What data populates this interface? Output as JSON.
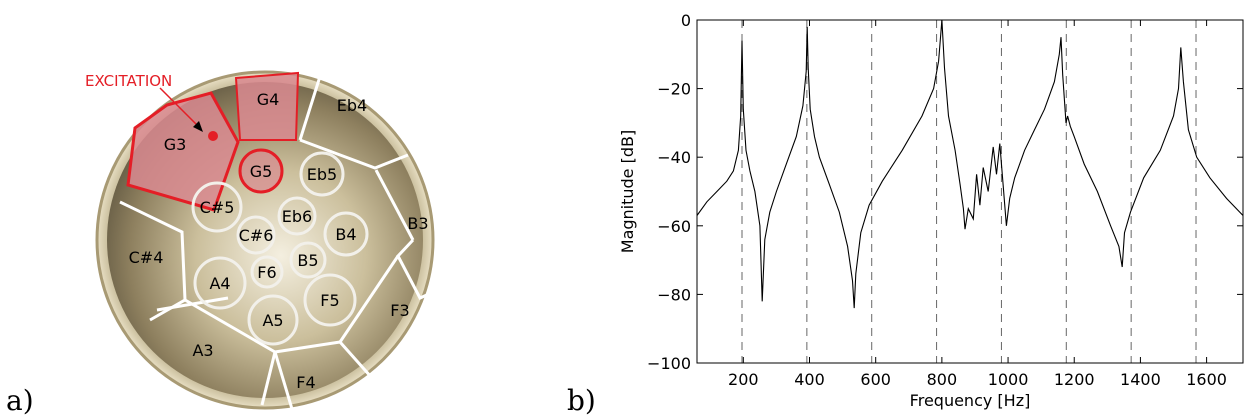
{
  "panel_labels": {
    "a": "a)",
    "b": "b)"
  },
  "pan_diagram": {
    "excitation_label": "EXCITATION",
    "highlight_color": "#d98a90",
    "excitation_color": "#e41e26",
    "notes": [
      "G3",
      "G4",
      "Eb4",
      "B3",
      "F3",
      "F4",
      "A3",
      "C#4",
      "G5",
      "Eb5",
      "C#5",
      "Eb6",
      "C#6",
      "B4",
      "B5",
      "F6",
      "A4",
      "F5",
      "A5"
    ]
  },
  "chart_data": {
    "type": "line",
    "title": "",
    "xlabel": "Frequency [Hz]",
    "ylabel": "Magnitude [dB]",
    "xlim": [
      60,
      1710
    ],
    "ylim": [
      -100,
      0
    ],
    "xticks": [
      200,
      400,
      600,
      800,
      1000,
      1200,
      1400,
      1600
    ],
    "yticks": [
      0,
      -20,
      -40,
      -60,
      -80,
      -100
    ],
    "vertical_dashed_lines": [
      196,
      392,
      588,
      784,
      980,
      1176,
      1372,
      1568
    ],
    "grid": false,
    "series": [
      {
        "x": [
          60,
          90,
          120,
          150,
          170,
          185,
          192,
          196,
          200,
          208,
          220,
          235,
          250,
          257,
          265,
          280,
          300,
          330,
          360,
          380,
          390,
          393,
          396,
          402,
          415,
          430,
          460,
          490,
          515,
          530,
          535,
          540,
          555,
          580,
          620,
          680,
          740,
          775,
          790,
          800,
          808,
          820,
          840,
          855,
          865,
          870,
          880,
          895,
          905,
          915,
          925,
          940,
          955,
          965,
          975,
          985,
          995,
          1005,
          1020,
          1050,
          1080,
          1110,
          1140,
          1155,
          1160,
          1165,
          1175,
          1180,
          1188,
          1200,
          1230,
          1270,
          1310,
          1335,
          1345,
          1352,
          1370,
          1410,
          1460,
          1500,
          1515,
          1522,
          1530,
          1545,
          1570,
          1610,
          1660,
          1710
        ],
        "y": [
          -57,
          -53,
          -50,
          -47,
          -44,
          -38,
          -28,
          -6,
          -26,
          -38,
          -44,
          -50,
          -60,
          -82,
          -64,
          -56,
          -50,
          -42,
          -34,
          -25,
          -15,
          -2,
          -14,
          -26,
          -34,
          -40,
          -48,
          -56,
          -66,
          -76,
          -84,
          -74,
          -62,
          -54,
          -47,
          -38,
          -28,
          -20,
          -12,
          0,
          -14,
          -28,
          -38,
          -48,
          -55,
          -61,
          -55,
          -58,
          -45,
          -54,
          -43,
          -50,
          -37,
          -45,
          -36,
          -48,
          -60,
          -52,
          -46,
          -38,
          -32,
          -26,
          -18,
          -10,
          -5,
          -16,
          -30,
          -28,
          -31,
          -34,
          -42,
          -50,
          -60,
          -66,
          -72,
          -62,
          -56,
          -46,
          -38,
          -28,
          -20,
          -8,
          -18,
          -32,
          -40,
          -46,
          -52,
          -57
        ]
      }
    ]
  }
}
